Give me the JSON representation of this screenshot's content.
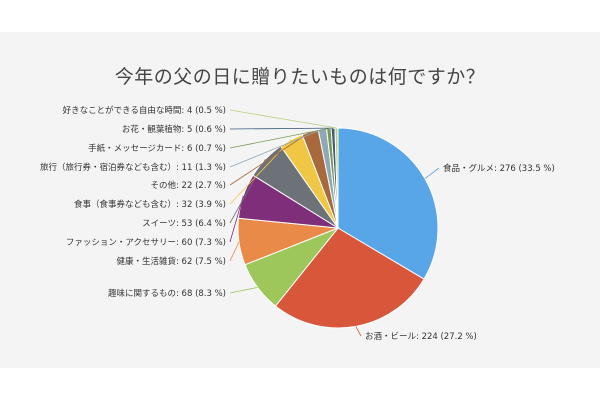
{
  "chart_data": {
    "type": "pie",
    "title": "今年の父の日に贈りたいものは何ですか？",
    "slices": [
      {
        "label": "食品・グルメ",
        "value": 276,
        "percent": "33.5 %",
        "color": "#58a5e8"
      },
      {
        "label": "お酒・ビール",
        "value": 224,
        "percent": "27.2 %",
        "color": "#d8573b"
      },
      {
        "label": "趣味に関するもの",
        "value": 68,
        "percent": "8.3 %",
        "color": "#9dc75a"
      },
      {
        "label": "健康・生活雑貨",
        "value": 62,
        "percent": "7.5 %",
        "color": "#ea8a48"
      },
      {
        "label": "ファッション・アクセサリー",
        "value": 60,
        "percent": "7.3 %",
        "color": "#7f2f7a"
      },
      {
        "label": "スイーツ",
        "value": 53,
        "percent": "6.4 %",
        "color": "#6d7278"
      },
      {
        "label": "食事（食事券なども含む）",
        "value": 32,
        "percent": "3.9 %",
        "color": "#f0c745"
      },
      {
        "label": "その他",
        "value": 22,
        "percent": "2.7 %",
        "color": "#a86a3c"
      },
      {
        "label": "旅行（旅行券・宿泊券なども含む）",
        "value": 11,
        "percent": "1.3 %",
        "color": "#8fa8b8"
      },
      {
        "label": "手紙・メッセージカード",
        "value": 6,
        "percent": "0.7 %",
        "color": "#7a9b55"
      },
      {
        "label": "お花・観葉植物",
        "value": 5,
        "percent": "0.6 %",
        "color": "#3d5a80"
      },
      {
        "label": "好きなことができる自由な時間",
        "value": 4,
        "percent": "0.5 %",
        "color": "#b9d27a"
      }
    ]
  }
}
